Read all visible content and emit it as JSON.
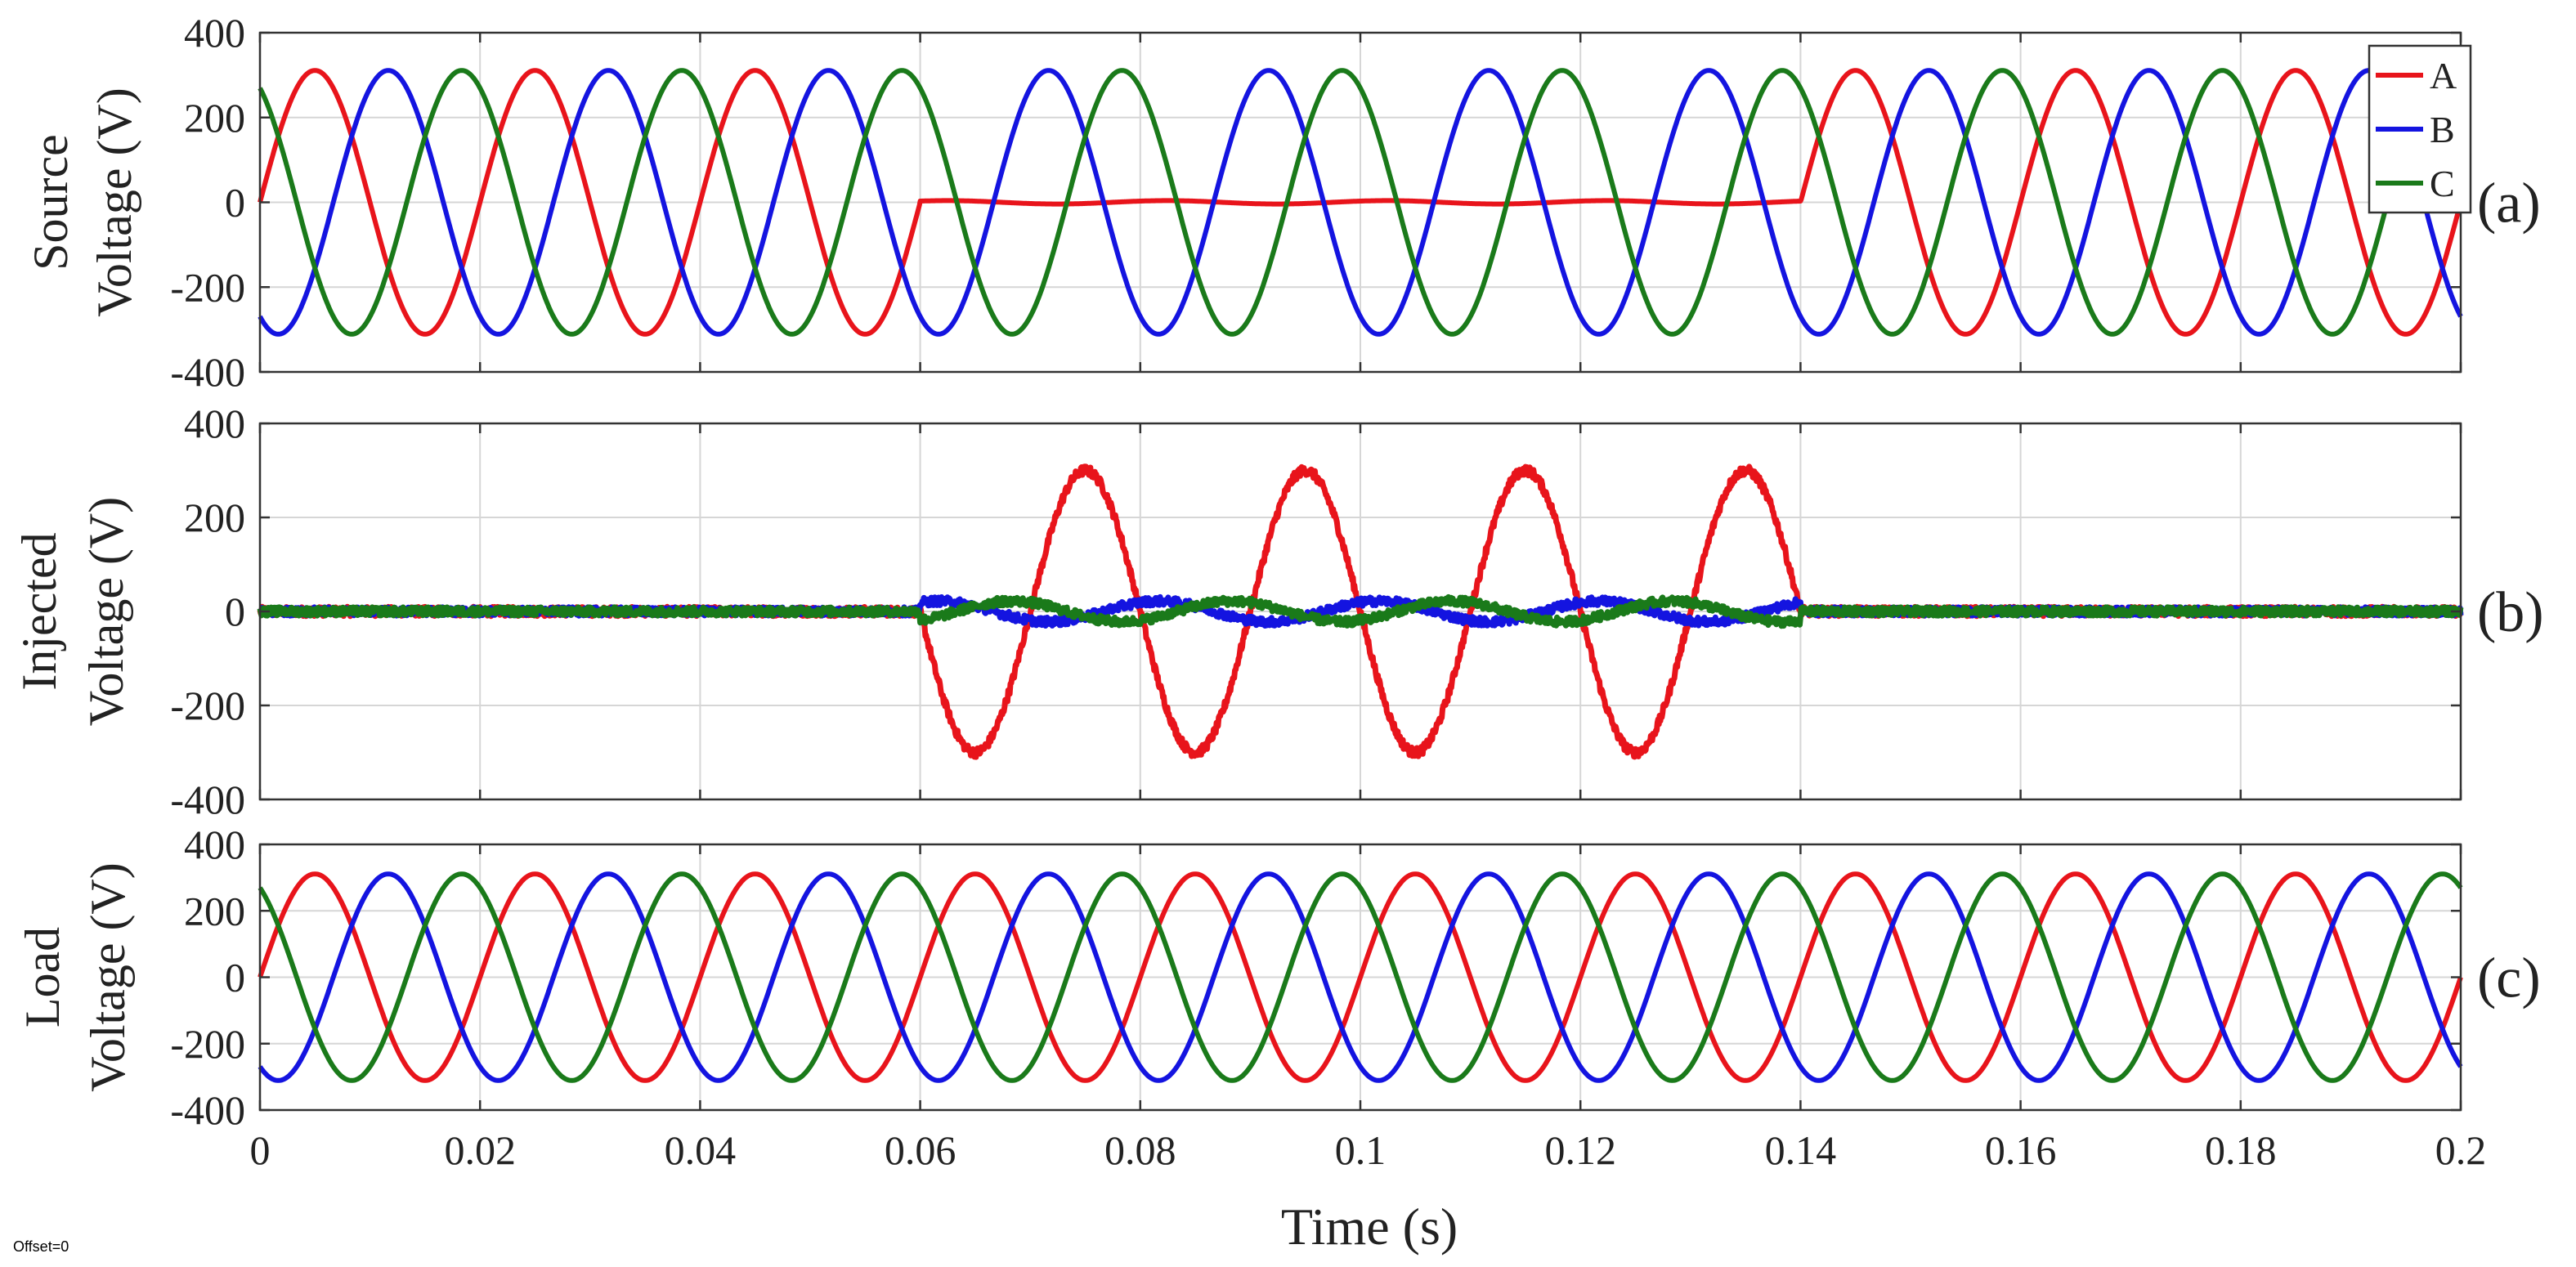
{
  "figure": {
    "xlabel": "Time (s)",
    "offset_note": "Offset=0"
  },
  "chart_data": [
    {
      "type": "line",
      "panel": "(a)",
      "ylabel_lines": [
        "Source",
        "Voltage (V)"
      ],
      "xlim": [
        0,
        0.2
      ],
      "ylim": [
        -400,
        400
      ],
      "x_ticks": [
        0,
        0.02,
        0.04,
        0.06,
        0.08,
        0.1,
        0.12,
        0.14,
        0.16,
        0.18,
        0.2
      ],
      "x_tick_labels": [],
      "y_ticks": [
        -400,
        -200,
        0,
        200,
        400
      ],
      "y_tick_labels": [
        "-400",
        "-200",
        "0",
        "200",
        "400"
      ],
      "grid": true,
      "frequency_hz": 50,
      "legend": {
        "placement": "top-right",
        "entries": [
          "A",
          "B",
          "C"
        ]
      },
      "series": [
        {
          "name": "A",
          "color": "#e8141b",
          "amplitude": 311,
          "phase_deg": 0,
          "sag": {
            "t_start": 0.06,
            "t_end": 0.14,
            "residual_amplitude": 4
          }
        },
        {
          "name": "B",
          "color": "#1414e0",
          "amplitude": 311,
          "phase_deg": -120
        },
        {
          "name": "C",
          "color": "#1a7a1a",
          "amplitude": 311,
          "phase_deg": 120
        }
      ]
    },
    {
      "type": "line",
      "panel": "(b)",
      "ylabel_lines": [
        "Injected",
        "Voltage (V)"
      ],
      "xlim": [
        0,
        0.2
      ],
      "ylim": [
        -400,
        400
      ],
      "x_ticks": [
        0,
        0.02,
        0.04,
        0.06,
        0.08,
        0.1,
        0.12,
        0.14,
        0.16,
        0.18,
        0.2
      ],
      "x_tick_labels": [],
      "y_ticks": [
        -400,
        -200,
        0,
        200,
        400
      ],
      "y_tick_labels": [
        "-400",
        "-200",
        "0",
        "200",
        "400"
      ],
      "grid": true,
      "frequency_hz": 50,
      "series": [
        {
          "name": "A",
          "color": "#e8141b",
          "window": {
            "t_start": 0.06,
            "t_end": 0.14
          },
          "amplitude": 300,
          "phase_deg": 180,
          "noise": 10
        },
        {
          "name": "B",
          "color": "#1414e0",
          "window": {
            "t_start": 0.06,
            "t_end": 0.14
          },
          "amplitude": 22,
          "phase_deg": 60,
          "noise": 9
        },
        {
          "name": "C",
          "color": "#1a7a1a",
          "window": {
            "t_start": 0.06,
            "t_end": 0.14
          },
          "amplitude": 22,
          "phase_deg": -60,
          "noise": 9
        }
      ]
    },
    {
      "type": "line",
      "panel": "(c)",
      "ylabel_lines": [
        "Load",
        "Voltage (V)"
      ],
      "xlim": [
        0,
        0.2
      ],
      "ylim": [
        -400,
        400
      ],
      "x_ticks": [
        0,
        0.02,
        0.04,
        0.06,
        0.08,
        0.1,
        0.12,
        0.14,
        0.16,
        0.18,
        0.2
      ],
      "x_tick_labels": [
        "0",
        "0.02",
        "0.04",
        "0.06",
        "0.08",
        "0.1",
        "0.12",
        "0.14",
        "0.16",
        "0.18",
        "0.2"
      ],
      "y_ticks": [
        -400,
        -200,
        0,
        200,
        400
      ],
      "y_tick_labels": [
        "-400",
        "-200",
        "0",
        "200",
        "400"
      ],
      "grid": true,
      "frequency_hz": 50,
      "series": [
        {
          "name": "A",
          "color": "#e8141b",
          "amplitude": 311,
          "phase_deg": 0
        },
        {
          "name": "B",
          "color": "#1414e0",
          "amplitude": 311,
          "phase_deg": -120
        },
        {
          "name": "C",
          "color": "#1a7a1a",
          "amplitude": 311,
          "phase_deg": 120
        }
      ]
    }
  ]
}
